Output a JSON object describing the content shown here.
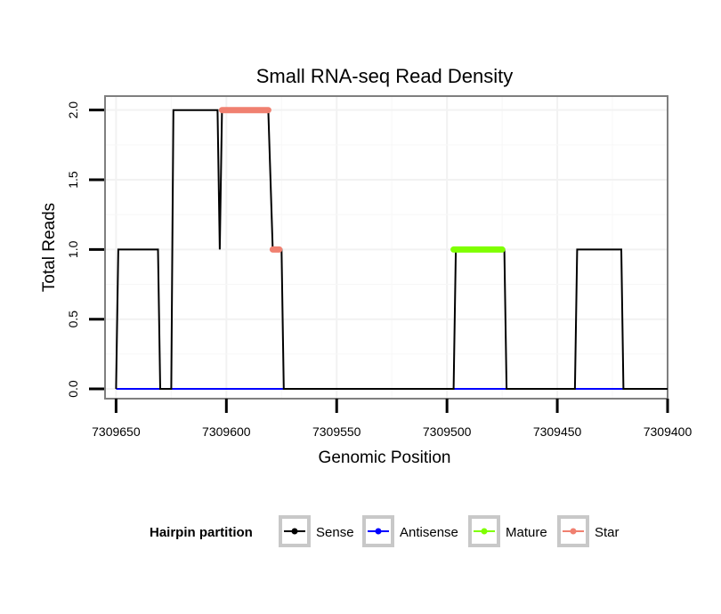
{
  "chart_data": {
    "type": "line",
    "title": "Small RNA-seq Read Density",
    "xlabel": "Genomic Position",
    "ylabel": "Total Reads",
    "xlim": [
      7309655,
      7309400
    ],
    "ylim": [
      -0.07,
      2.1
    ],
    "x_ticks": [
      7309650,
      7309600,
      7309550,
      7309500,
      7309450,
      7309400
    ],
    "x_tick_labels": [
      "7309650",
      "7309600",
      "7309550",
      "7309500",
      "7309450",
      "7309400"
    ],
    "y_ticks": [
      0,
      0.5,
      1,
      1.5,
      2
    ],
    "y_tick_labels": [
      "0.0",
      "0.5",
      "1.0",
      "1.5",
      "2.0"
    ],
    "grid": true,
    "legend_position": "bottom",
    "legend_title": "Hairpin partition",
    "series": [
      {
        "name": "Sense",
        "color": "#000000",
        "width": 2,
        "points": [
          [
            7309650,
            0
          ],
          [
            7309649,
            1
          ],
          [
            7309631,
            1
          ],
          [
            7309630,
            0
          ],
          [
            7309625,
            0
          ],
          [
            7309624,
            2
          ],
          [
            7309604,
            2
          ],
          [
            7309603,
            1
          ],
          [
            7309602,
            2
          ],
          [
            7309581,
            2
          ],
          [
            7309579,
            1
          ],
          [
            7309575,
            1
          ],
          [
            7309574,
            0
          ],
          [
            7309497,
            0
          ],
          [
            7309496,
            1
          ],
          [
            7309474,
            1
          ],
          [
            7309473,
            0
          ],
          [
            7309442,
            0
          ],
          [
            7309441,
            1
          ],
          [
            7309421,
            1
          ],
          [
            7309420,
            0
          ],
          [
            7309400,
            0
          ]
        ]
      },
      {
        "name": "Antisense",
        "color": "#0000ff",
        "width": 2,
        "points": [
          [
            7309650,
            0
          ],
          [
            7309575,
            0
          ],
          [
            7309497,
            0
          ],
          [
            7309473,
            0
          ],
          [
            7309420,
            0
          ]
        ]
      },
      {
        "name": "Mature",
        "color": "#7fff00",
        "width": 7,
        "points": [
          [
            7309497,
            1
          ],
          [
            7309475,
            1
          ]
        ]
      },
      {
        "name": "Star",
        "color": "#f08070",
        "width": 7,
        "segments": [
          [
            [
              7309602,
              2
            ],
            [
              7309581,
              2
            ]
          ],
          [
            [
              7309579,
              1
            ],
            [
              7309576,
              1
            ]
          ]
        ]
      }
    ]
  }
}
